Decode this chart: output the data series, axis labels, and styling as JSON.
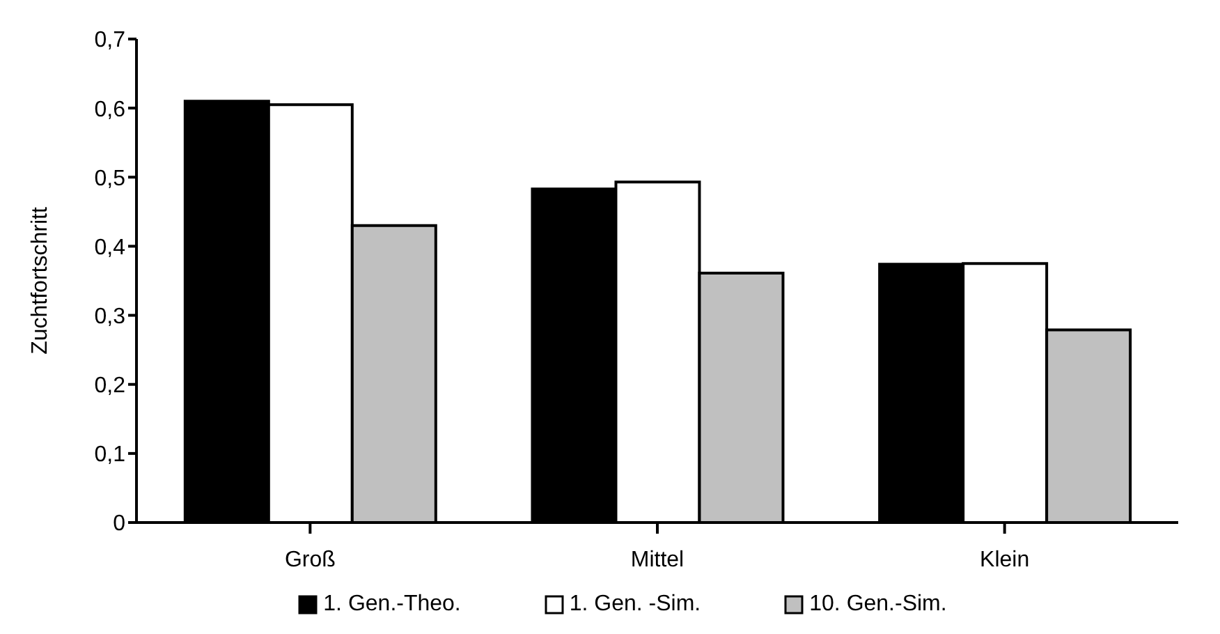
{
  "chart_data": {
    "type": "bar",
    "ylabel": "Zuchtfortschritt",
    "categories": [
      "Groß",
      "Mittel",
      "Klein"
    ],
    "series": [
      {
        "name": "1. Gen.-Theo.",
        "color": "#000000",
        "values": [
          0.61,
          0.483,
          0.374
        ]
      },
      {
        "name": "1. Gen. -Sim.",
        "color": "#ffffff",
        "values": [
          0.605,
          0.493,
          0.375
        ]
      },
      {
        "name": "10. Gen.-Sim.",
        "color": "#c0c0c0",
        "values": [
          0.43,
          0.361,
          0.279
        ]
      }
    ],
    "ylim": [
      0,
      0.7
    ],
    "yticks": [
      {
        "value": 0,
        "label": "0"
      },
      {
        "value": 0.1,
        "label": "0,1"
      },
      {
        "value": 0.2,
        "label": "0,2"
      },
      {
        "value": 0.3,
        "label": "0,3"
      },
      {
        "value": 0.4,
        "label": "0,4"
      },
      {
        "value": 0.5,
        "label": "0,5"
      },
      {
        "value": 0.6,
        "label": "0,6"
      },
      {
        "value": 0.7,
        "label": "0,7"
      }
    ],
    "grid": false,
    "legend": "bottom"
  }
}
